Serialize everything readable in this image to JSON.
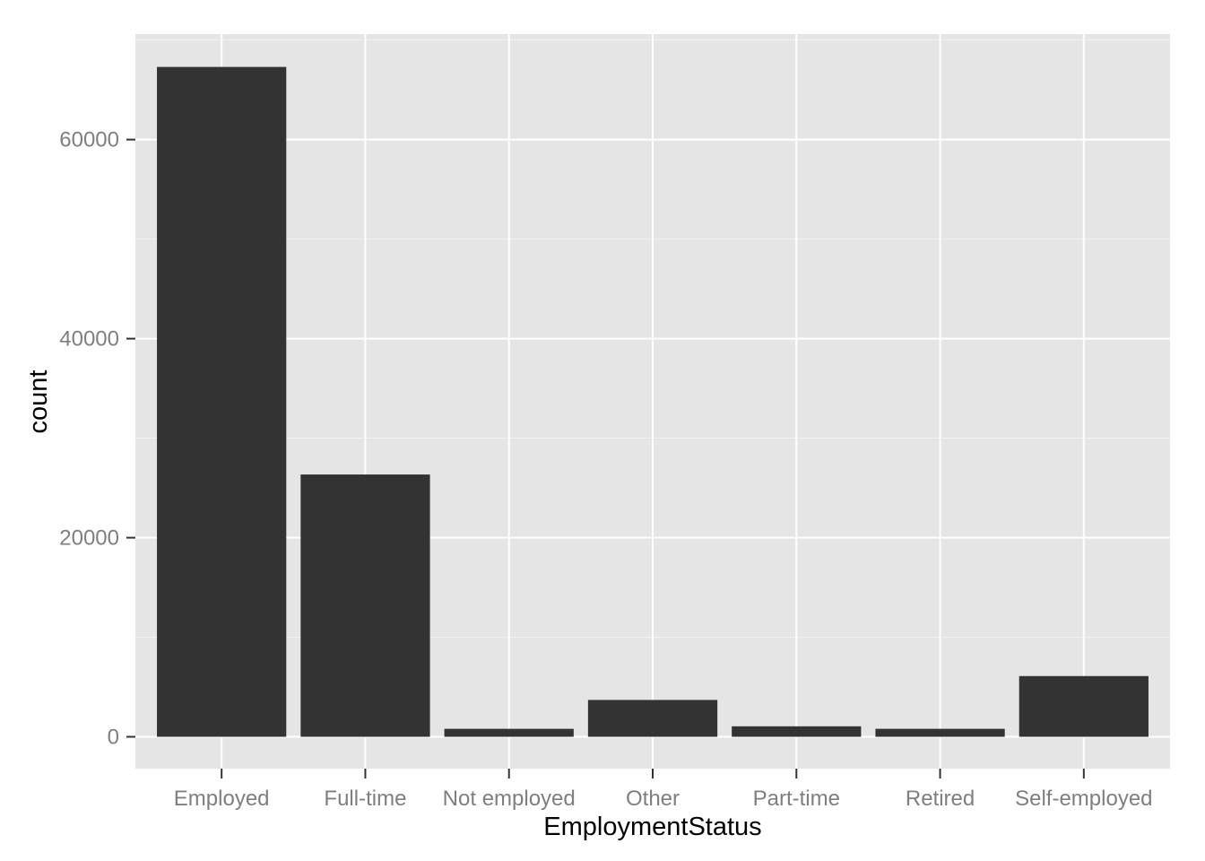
{
  "chart_data": {
    "type": "bar",
    "categories": [
      "Employed",
      "Full-time",
      "Not employed",
      "Other",
      "Part-time",
      "Retired",
      "Self-employed"
    ],
    "values": [
      67300,
      26350,
      800,
      3700,
      1050,
      800,
      6100
    ],
    "title": "",
    "xlabel": "EmploymentStatus",
    "ylabel": "count",
    "ylim": [
      -3200,
      70600
    ],
    "yticks": [
      0,
      20000,
      40000,
      60000
    ],
    "ytick_labels": [
      "0",
      "20000",
      "40000",
      "60000"
    ],
    "grid": true,
    "legend": "none",
    "colors": {
      "bar": "#333333",
      "panel_background": "#e5e5e5",
      "grid_major": "#ffffff",
      "grid_minor": "#f2f2f2",
      "tick_label": "#7f7f7f",
      "axis_title": "#000000"
    }
  }
}
